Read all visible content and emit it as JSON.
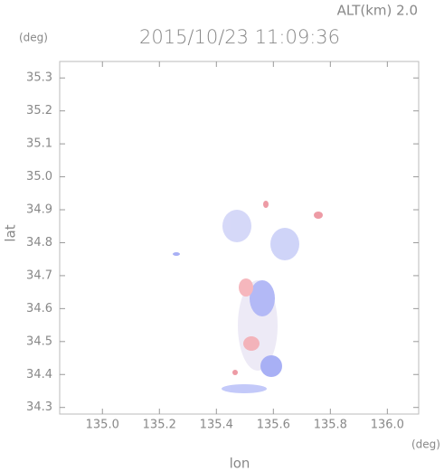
{
  "chart_data": {
    "type": "map",
    "title": "2015/10/23 11:09:36",
    "subtitle": "ALT(km)  2.0",
    "x_label": "lon",
    "y_label": "lat",
    "x_unit": "(deg)",
    "y_unit": "(deg)",
    "xlim": [
      134.85,
      136.11
    ],
    "ylim": [
      34.28,
      35.35
    ],
    "xticks": [
      {
        "value": 135,
        "label": "135.0"
      },
      135.2,
      135.4,
      135.6,
      135.8,
      {
        "value": 136,
        "label": "136.0"
      }
    ],
    "yticks": [
      34.3,
      34.4,
      34.5,
      34.6,
      34.7,
      34.8,
      34.9,
      {
        "value": 35,
        "label": "35.0"
      },
      35.1,
      35.2,
      35.3
    ]
  }
}
